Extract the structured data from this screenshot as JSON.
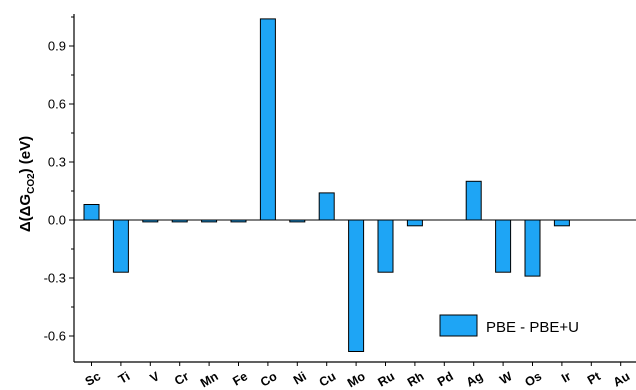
{
  "chart_data": {
    "type": "bar",
    "categories": [
      "Sc",
      "Ti",
      "V",
      "Cr",
      "Mn",
      "Fe",
      "Co",
      "Ni",
      "Cu",
      "Mo",
      "Ru",
      "Rh",
      "Pd",
      "Ag",
      "W",
      "Os",
      "Ir",
      "Pt",
      "Au"
    ],
    "series": [
      {
        "name": "PBE - PBE+U",
        "values": [
          0.08,
          -0.27,
          -0.01,
          -0.01,
          -0.01,
          -0.01,
          1.04,
          -0.01,
          0.14,
          -0.68,
          -0.27,
          -0.03,
          0.0,
          0.2,
          -0.27,
          -0.29,
          -0.03,
          0.0,
          0.0
        ]
      }
    ],
    "ylabel": {
      "prefix": "Δ(ΔG",
      "subscript": "CO2",
      "suffix": ") (eV)"
    },
    "ylim": [
      -0.69,
      1.07
    ],
    "yticks": [
      "0.9",
      "0.6",
      "0.3",
      "0.0",
      "-0.3",
      "-0.6"
    ],
    "ytick_values": [
      0.9,
      0.6,
      0.3,
      0.0,
      -0.3,
      -0.6
    ],
    "legend_position": "bottom-right",
    "grid": false,
    "colors": {
      "bar_fill": "#1EA5F5",
      "bar_stroke": "#000000"
    }
  }
}
